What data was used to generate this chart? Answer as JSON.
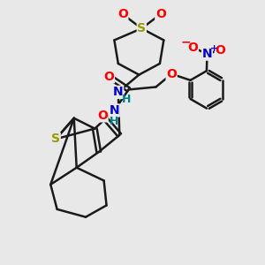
{
  "background_color": "#e8e8e8",
  "bond_color": "#1a1a1a",
  "bond_width": 1.8,
  "atom_colors": {
    "S": "#999900",
    "O": "#ff0000",
    "N": "#0000cc",
    "H": "#008080",
    "C": "#1a1a1a"
  },
  "figsize": [
    3.0,
    3.0
  ],
  "dpi": 100
}
